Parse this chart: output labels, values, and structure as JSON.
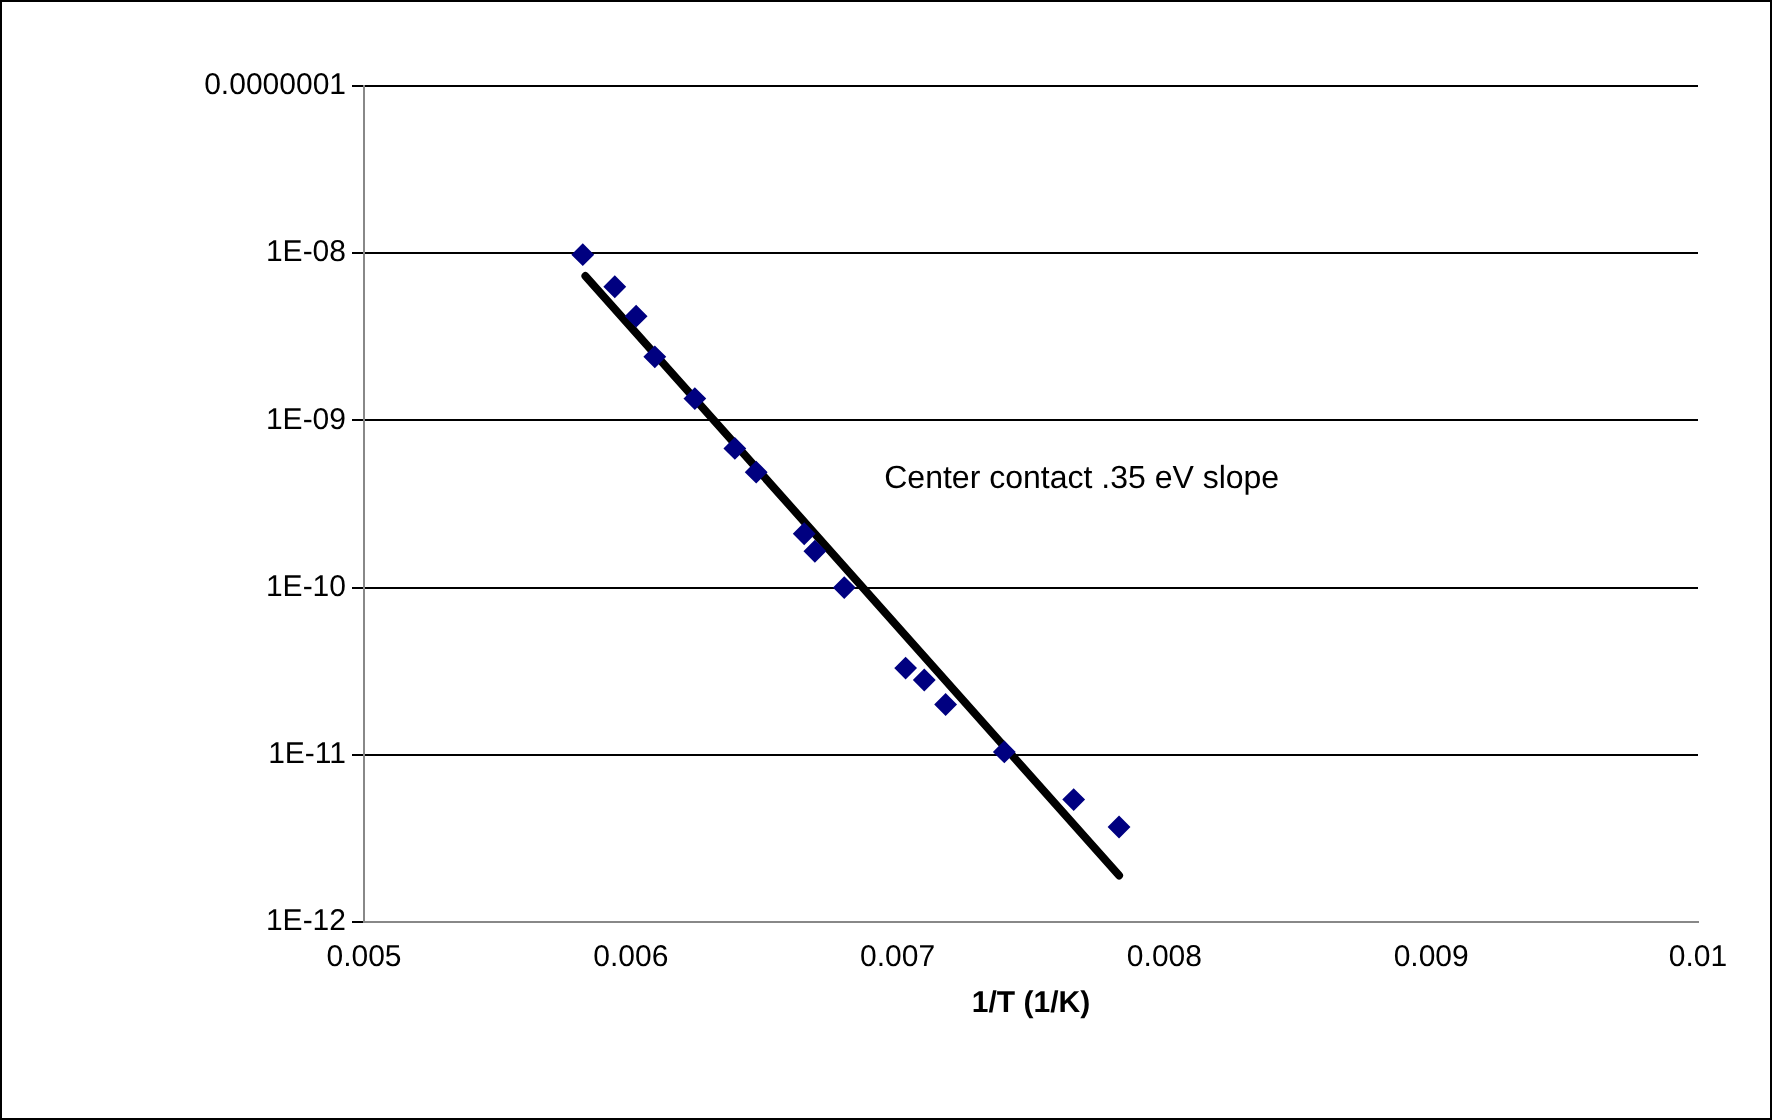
{
  "chart_data": {
    "type": "scatter",
    "xlabel": "1/T (1/K)",
    "annotations": [
      "Center contact .35 eV slope"
    ],
    "log": "y",
    "grid": "y",
    "legend": false,
    "xlim": [
      0.005,
      0.01
    ],
    "xticks": [
      0.005,
      0.006,
      0.007,
      0.008,
      0.009,
      0.01
    ],
    "ylim": [
      1e-12,
      1e-07
    ],
    "yticks": [
      {
        "value": 1e-12,
        "label": "1E-12"
      },
      {
        "value": 1e-11,
        "label": "1E-11"
      },
      {
        "value": 1e-10,
        "label": "1E-10"
      },
      {
        "value": 1e-09,
        "label": "1E-09"
      },
      {
        "value": 1e-08,
        "label": "1E-08"
      },
      {
        "value": 1e-07,
        "label": "0.0000001"
      }
    ],
    "series": [
      {
        "color": "#000080",
        "marker": "diamond",
        "x": [
          0.00582,
          0.00594,
          0.00602,
          0.00609,
          0.00624,
          0.00639,
          0.00647,
          0.00665,
          0.00669,
          0.0068,
          0.00703,
          0.0071,
          0.00718,
          0.0074,
          0.00766,
          0.00783
        ],
        "values": [
          9.8e-09,
          6.3e-09,
          4.2e-09,
          2.4e-09,
          1.35e-09,
          6.8e-10,
          4.9e-10,
          2.1e-10,
          1.65e-10,
          1e-10,
          3.3e-11,
          2.8e-11,
          2e-11,
          1.04e-11,
          5.4e-12,
          3.7e-12
        ]
      },
      {
        "type": "line",
        "color": "#000000",
        "marker": "none",
        "x": [
          0.00583,
          0.00783
        ],
        "values": [
          7.3e-09,
          1.9e-12
        ]
      }
    ]
  }
}
